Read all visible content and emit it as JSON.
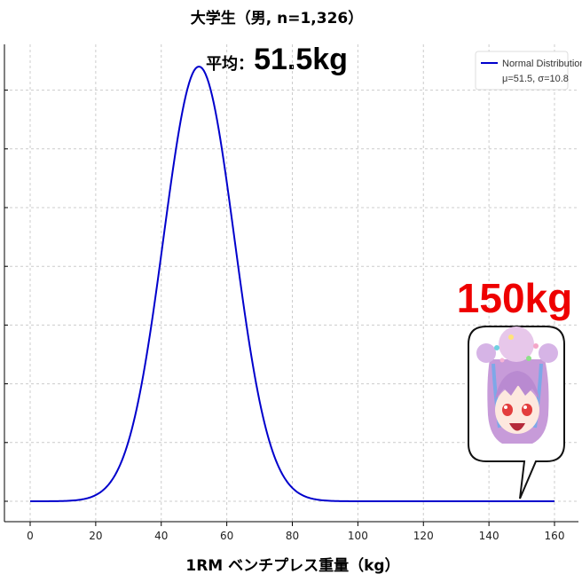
{
  "chart_data": {
    "type": "line",
    "title_line1": "大学生（男, n=1,326）",
    "title_line2_prefix": "平均：",
    "title_line2_value": "51.5kg",
    "xlabel": "1RM ベンチプレス重量（kg）",
    "ylabel": "",
    "xlim": [
      -8,
      168
    ],
    "x_ticks": [
      0,
      20,
      40,
      60,
      80,
      100,
      120,
      140,
      160
    ],
    "grid": true,
    "legend_position": "top-right",
    "series": [
      {
        "name": "Normal Distribution",
        "name_line2": "μ=51.5, σ=10.8",
        "distribution": "normal",
        "mean": 51.5,
        "std": 10.8,
        "x_range": [
          0,
          160
        ],
        "color": "#0000cc"
      }
    ],
    "annotation": {
      "text": "150kg",
      "color": "#ee0000",
      "pointer_x": 150
    }
  }
}
